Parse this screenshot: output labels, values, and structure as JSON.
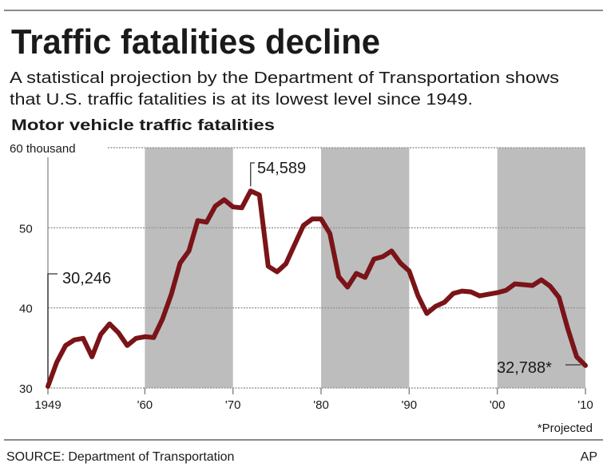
{
  "header": {
    "title": "Traffic fatalities decline",
    "subtitle_line1": "A statistical projection by the Department of Transportation shows",
    "subtitle_line2": "that U.S. traffic fatalities is at its lowest level since 1949."
  },
  "footer": {
    "source": "SOURCE: Department of Transportation",
    "credit": "AP",
    "note": "*Projected"
  },
  "colors": {
    "line": "#7a1418",
    "band": "#bdbdbd",
    "grid": "#9a9a9a"
  },
  "chart_data": {
    "type": "line",
    "title": "Motor vehicle traffic fatalities",
    "xlim": [
      1949,
      2010
    ],
    "ylim": [
      30,
      60
    ],
    "y_ticks": [
      {
        "value": 30,
        "label": "30"
      },
      {
        "value": 40,
        "label": "40"
      },
      {
        "value": 50,
        "label": "50"
      },
      {
        "value": 60,
        "label": "60 thousand"
      }
    ],
    "x_ticks": [
      {
        "value": 1949,
        "label": "1949"
      },
      {
        "value": 1960,
        "label": "'60"
      },
      {
        "value": 1970,
        "label": "'70"
      },
      {
        "value": 1980,
        "label": "'80"
      },
      {
        "value": 1990,
        "label": "'90"
      },
      {
        "value": 2000,
        "label": "'00"
      },
      {
        "value": 2010,
        "label": "'10"
      }
    ],
    "shaded_decades": [
      [
        1960,
        1970
      ],
      [
        1980,
        1990
      ],
      [
        2000,
        2010
      ]
    ],
    "grid": true,
    "x": [
      1949,
      1950,
      1951,
      1952,
      1953,
      1954,
      1955,
      1956,
      1957,
      1958,
      1959,
      1960,
      1961,
      1962,
      1963,
      1964,
      1965,
      1966,
      1967,
      1968,
      1969,
      1970,
      1971,
      1972,
      1973,
      1974,
      1975,
      1976,
      1977,
      1978,
      1979,
      1980,
      1981,
      1982,
      1983,
      1984,
      1985,
      1986,
      1987,
      1988,
      1989,
      1990,
      1991,
      1992,
      1993,
      1994,
      1995,
      1996,
      1997,
      1998,
      1999,
      2000,
      2001,
      2002,
      2003,
      2004,
      2005,
      2006,
      2007,
      2008,
      2009,
      2010
    ],
    "values": [
      30.2,
      33.2,
      35.3,
      36.0,
      36.2,
      33.9,
      36.7,
      38.0,
      36.9,
      35.3,
      36.2,
      36.4,
      36.3,
      38.6,
      41.7,
      45.6,
      47.1,
      50.9,
      50.7,
      52.7,
      53.5,
      52.6,
      52.5,
      54.6,
      54.1,
      45.2,
      44.5,
      45.5,
      47.9,
      50.3,
      51.1,
      51.1,
      49.3,
      43.9,
      42.6,
      44.3,
      43.8,
      46.1,
      46.4,
      47.1,
      45.6,
      44.6,
      41.5,
      39.3,
      40.2,
      40.7,
      41.8,
      42.1,
      42.0,
      41.5,
      41.7,
      41.9,
      42.2,
      43.0,
      42.9,
      42.8,
      43.5,
      42.7,
      41.3,
      37.4,
      33.9,
      32.8
    ],
    "annotations": [
      {
        "x": 1949,
        "y": 30.246,
        "label": "30,246"
      },
      {
        "x": 1972,
        "y": 54.589,
        "label": "54,589"
      },
      {
        "x": 2010,
        "y": 32.788,
        "label": "32,788*"
      }
    ]
  }
}
